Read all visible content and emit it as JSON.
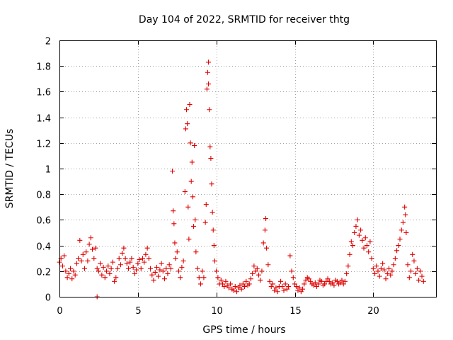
{
  "chart_data": {
    "type": "scatter",
    "title": "Day 104 of 2022, SRMTID for receiver thtg",
    "xlabel": "GPS time / hours",
    "ylabel": "SRMTID / TECUs",
    "xlim": [
      0,
      24
    ],
    "ylim": [
      0,
      2
    ],
    "xticks": [
      0,
      5,
      10,
      15,
      20
    ],
    "xtick_labels": [
      "0",
      "5",
      "10",
      "15",
      "20"
    ],
    "yticks": [
      0,
      0.2,
      0.4,
      0.6,
      0.8,
      1.0,
      1.2,
      1.4,
      1.6,
      1.8,
      2.0
    ],
    "ytick_labels": [
      "0",
      "0.2",
      "0.4",
      "0.6",
      "0.8",
      "1",
      "1.2",
      "1.4",
      "1.6",
      "1.8",
      "2"
    ],
    "grid": true,
    "marker": "+",
    "color": "#e00000",
    "series": [
      {
        "name": "SRMTID",
        "points": [
          [
            0.0,
            0.27
          ],
          [
            0.1,
            0.3
          ],
          [
            0.2,
            0.24
          ],
          [
            0.3,
            0.32
          ],
          [
            0.4,
            0.2
          ],
          [
            0.5,
            0.15
          ],
          [
            0.6,
            0.18
          ],
          [
            0.7,
            0.22
          ],
          [
            0.8,
            0.14
          ],
          [
            0.9,
            0.2
          ],
          [
            1.0,
            0.17
          ],
          [
            1.1,
            0.26
          ],
          [
            1.2,
            0.3
          ],
          [
            1.3,
            0.44
          ],
          [
            1.4,
            0.28
          ],
          [
            1.5,
            0.33
          ],
          [
            1.6,
            0.22
          ],
          [
            1.7,
            0.35
          ],
          [
            1.8,
            0.28
          ],
          [
            1.9,
            0.41
          ],
          [
            2.0,
            0.46
          ],
          [
            2.1,
            0.37
          ],
          [
            2.2,
            0.3
          ],
          [
            2.3,
            0.38
          ],
          [
            2.4,
            0.22
          ],
          [
            2.5,
            0.2
          ],
          [
            2.6,
            0.26
          ],
          [
            2.7,
            0.17
          ],
          [
            2.8,
            0.23
          ],
          [
            2.9,
            0.15
          ],
          [
            3.0,
            0.2
          ],
          [
            3.1,
            0.24
          ],
          [
            3.2,
            0.18
          ],
          [
            3.3,
            0.22
          ],
          [
            3.4,
            0.27
          ],
          [
            3.5,
            0.12
          ],
          [
            3.6,
            0.15
          ],
          [
            3.7,
            0.22
          ],
          [
            3.8,
            0.3
          ],
          [
            3.9,
            0.25
          ],
          [
            4.0,
            0.34
          ],
          [
            4.1,
            0.38
          ],
          [
            4.2,
            0.3
          ],
          [
            4.3,
            0.26
          ],
          [
            4.4,
            0.22
          ],
          [
            4.5,
            0.27
          ],
          [
            4.6,
            0.3
          ],
          [
            4.7,
            0.23
          ],
          [
            4.8,
            0.18
          ],
          [
            4.9,
            0.21
          ],
          [
            5.0,
            0.26
          ],
          [
            5.1,
            0.29
          ],
          [
            5.2,
            0.22
          ],
          [
            5.3,
            0.3
          ],
          [
            5.4,
            0.27
          ],
          [
            5.5,
            0.33
          ],
          [
            5.6,
            0.38
          ],
          [
            5.7,
            0.3
          ],
          [
            5.8,
            0.22
          ],
          [
            5.9,
            0.17
          ],
          [
            6.0,
            0.13
          ],
          [
            6.1,
            0.19
          ],
          [
            6.2,
            0.23
          ],
          [
            6.3,
            0.16
          ],
          [
            6.4,
            0.21
          ],
          [
            6.5,
            0.26
          ],
          [
            6.6,
            0.2
          ],
          [
            6.7,
            0.14
          ],
          [
            6.8,
            0.22
          ],
          [
            6.9,
            0.18
          ],
          [
            7.0,
            0.25
          ],
          [
            7.1,
            0.22
          ],
          [
            7.2,
            0.98
          ],
          [
            7.25,
            0.67
          ],
          [
            7.3,
            0.57
          ],
          [
            7.35,
            0.42
          ],
          [
            7.4,
            0.3
          ],
          [
            7.5,
            0.35
          ],
          [
            7.6,
            0.2
          ],
          [
            7.7,
            0.15
          ],
          [
            7.8,
            0.23
          ],
          [
            7.9,
            0.28
          ],
          [
            8.0,
            0.82
          ],
          [
            8.05,
            1.31
          ],
          [
            8.1,
            1.46
          ],
          [
            8.15,
            1.35
          ],
          [
            8.2,
            0.7
          ],
          [
            8.25,
            0.45
          ],
          [
            8.3,
            1.5
          ],
          [
            8.35,
            1.2
          ],
          [
            8.4,
            0.9
          ],
          [
            8.45,
            1.05
          ],
          [
            8.5,
            0.78
          ],
          [
            8.55,
            0.55
          ],
          [
            8.6,
            1.18
          ],
          [
            8.65,
            0.6
          ],
          [
            8.7,
            0.35
          ],
          [
            8.8,
            0.22
          ],
          [
            8.9,
            0.15
          ],
          [
            9.0,
            0.1
          ],
          [
            9.1,
            0.2
          ],
          [
            9.2,
            0.15
          ],
          [
            9.3,
            0.58
          ],
          [
            9.35,
            0.72
          ],
          [
            9.4,
            1.62
          ],
          [
            9.45,
            1.75
          ],
          [
            9.5,
            1.83
          ],
          [
            9.5,
            1.66
          ],
          [
            9.55,
            1.46
          ],
          [
            9.6,
            1.17
          ],
          [
            9.65,
            1.08
          ],
          [
            9.7,
            0.88
          ],
          [
            9.75,
            0.66
          ],
          [
            9.8,
            0.52
          ],
          [
            9.85,
            0.4
          ],
          [
            9.9,
            0.28
          ],
          [
            10.0,
            0.2
          ],
          [
            10.1,
            0.15
          ],
          [
            10.2,
            0.1
          ],
          [
            10.3,
            0.13
          ],
          [
            10.4,
            0.1
          ],
          [
            10.5,
            0.08
          ],
          [
            10.6,
            0.12
          ],
          [
            10.7,
            0.09
          ],
          [
            10.8,
            0.07
          ],
          [
            10.9,
            0.1
          ],
          [
            11.0,
            0.06
          ],
          [
            11.1,
            0.05
          ],
          [
            11.2,
            0.08
          ],
          [
            11.3,
            0.04
          ],
          [
            11.4,
            0.07
          ],
          [
            11.5,
            0.09
          ],
          [
            11.6,
            0.06
          ],
          [
            11.7,
            0.1
          ],
          [
            11.8,
            0.08
          ],
          [
            11.9,
            0.12
          ],
          [
            12.0,
            0.09
          ],
          [
            12.1,
            0.1
          ],
          [
            12.2,
            0.14
          ],
          [
            12.3,
            0.18
          ],
          [
            12.4,
            0.24
          ],
          [
            12.5,
            0.2
          ],
          [
            12.6,
            0.22
          ],
          [
            12.7,
            0.17
          ],
          [
            12.8,
            0.13
          ],
          [
            12.9,
            0.2
          ],
          [
            13.0,
            0.42
          ],
          [
            13.1,
            0.52
          ],
          [
            13.15,
            0.61
          ],
          [
            13.2,
            0.38
          ],
          [
            13.3,
            0.25
          ],
          [
            13.4,
            0.12
          ],
          [
            13.5,
            0.08
          ],
          [
            13.6,
            0.1
          ],
          [
            13.7,
            0.05
          ],
          [
            13.8,
            0.07
          ],
          [
            13.9,
            0.04
          ],
          [
            14.0,
            0.08
          ],
          [
            14.1,
            0.12
          ],
          [
            14.2,
            0.08
          ],
          [
            14.3,
            0.05
          ],
          [
            14.4,
            0.1
          ],
          [
            14.5,
            0.06
          ],
          [
            14.6,
            0.08
          ],
          [
            14.7,
            0.32
          ],
          [
            14.8,
            0.2
          ],
          [
            14.9,
            0.15
          ],
          [
            15.0,
            0.1
          ],
          [
            15.1,
            0.08
          ],
          [
            15.2,
            0.05
          ],
          [
            15.3,
            0.07
          ],
          [
            15.4,
            0.04
          ],
          [
            15.5,
            0.06
          ],
          [
            15.6,
            0.1
          ],
          [
            15.7,
            0.13
          ],
          [
            15.8,
            0.15
          ],
          [
            15.9,
            0.14
          ],
          [
            16.0,
            0.12
          ],
          [
            16.1,
            0.1
          ],
          [
            16.2,
            0.09
          ],
          [
            16.3,
            0.11
          ],
          [
            16.4,
            0.08
          ],
          [
            16.5,
            0.1
          ],
          [
            16.6,
            0.13
          ],
          [
            16.7,
            0.12
          ],
          [
            16.8,
            0.09
          ],
          [
            16.9,
            0.1
          ],
          [
            17.0,
            0.12
          ],
          [
            17.1,
            0.14
          ],
          [
            17.2,
            0.12
          ],
          [
            17.3,
            0.1
          ],
          [
            17.4,
            0.11
          ],
          [
            17.5,
            0.09
          ],
          [
            17.6,
            0.13
          ],
          [
            17.7,
            0.12
          ],
          [
            17.8,
            0.1
          ],
          [
            17.9,
            0.11
          ],
          [
            18.0,
            0.13
          ],
          [
            18.1,
            0.1
          ],
          [
            18.2,
            0.12
          ],
          [
            18.3,
            0.18
          ],
          [
            18.4,
            0.24
          ],
          [
            18.5,
            0.33
          ],
          [
            18.6,
            0.43
          ],
          [
            18.7,
            0.4
          ],
          [
            18.8,
            0.5
          ],
          [
            18.9,
            0.55
          ],
          [
            19.0,
            0.6
          ],
          [
            19.1,
            0.48
          ],
          [
            19.2,
            0.52
          ],
          [
            19.3,
            0.44
          ],
          [
            19.4,
            0.38
          ],
          [
            19.5,
            0.46
          ],
          [
            19.6,
            0.4
          ],
          [
            19.7,
            0.35
          ],
          [
            19.8,
            0.43
          ],
          [
            19.9,
            0.3
          ],
          [
            20.0,
            0.22
          ],
          [
            20.1,
            0.18
          ],
          [
            20.2,
            0.24
          ],
          [
            20.3,
            0.2
          ],
          [
            20.4,
            0.16
          ],
          [
            20.5,
            0.22
          ],
          [
            20.6,
            0.26
          ],
          [
            20.7,
            0.21
          ],
          [
            20.8,
            0.14
          ],
          [
            20.9,
            0.18
          ],
          [
            21.0,
            0.22
          ],
          [
            21.1,
            0.17
          ],
          [
            21.2,
            0.2
          ],
          [
            21.3,
            0.25
          ],
          [
            21.4,
            0.3
          ],
          [
            21.5,
            0.36
          ],
          [
            21.6,
            0.4
          ],
          [
            21.7,
            0.45
          ],
          [
            21.8,
            0.52
          ],
          [
            21.9,
            0.58
          ],
          [
            22.0,
            0.7
          ],
          [
            22.05,
            0.64
          ],
          [
            22.1,
            0.5
          ],
          [
            22.2,
            0.25
          ],
          [
            22.3,
            0.15
          ],
          [
            22.4,
            0.2
          ],
          [
            22.5,
            0.33
          ],
          [
            22.6,
            0.28
          ],
          [
            22.7,
            0.18
          ],
          [
            22.8,
            0.22
          ],
          [
            22.9,
            0.13
          ],
          [
            23.0,
            0.2
          ],
          [
            23.1,
            0.16
          ],
          [
            23.2,
            0.12
          ],
          [
            2.4,
            0.0
          ]
        ]
      }
    ]
  }
}
